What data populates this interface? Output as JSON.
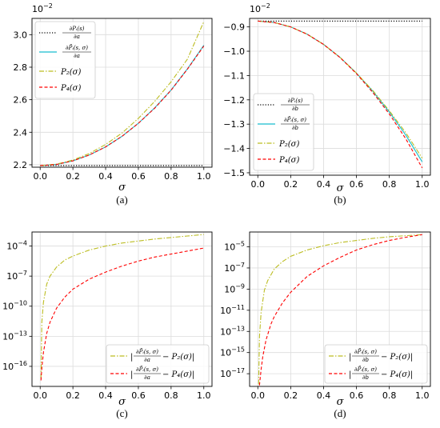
{
  "chart_data": [
    {
      "panel": "a",
      "caption": "(a)",
      "type": "line",
      "xlabel": "σ",
      "ylabel": "",
      "offset_text": "10^-2",
      "xlim": [
        0,
        1
      ],
      "ylim": [
        2.185,
        3.1
      ],
      "yscale": "linear",
      "xticks": [
        "0.0",
        "0.2",
        "0.4",
        "0.6",
        "0.8",
        "1.0"
      ],
      "yticks": [
        "2.2",
        "2.4",
        "2.6",
        "2.8",
        "3.0"
      ],
      "grid": true,
      "legend_position": "upper-left",
      "series": [
        {
          "name": "∂Pᵢ(s)/∂a",
          "style": "dotted",
          "color": "#000000",
          "x": [
            0,
            1
          ],
          "y": [
            2.195,
            2.195
          ]
        },
        {
          "name": "∂P̃ᵢ(s,σ)/∂a",
          "style": "solid",
          "color": "#17becf",
          "x": [
            0,
            0.1,
            0.2,
            0.3,
            0.4,
            0.5,
            0.6,
            0.7,
            0.8,
            0.9,
            1.0
          ],
          "y": [
            2.195,
            2.202,
            2.224,
            2.26,
            2.31,
            2.375,
            2.455,
            2.55,
            2.66,
            2.79,
            2.935
          ]
        },
        {
          "name": "P₂(σ)",
          "style": "dashdot",
          "color": "#bcbd22",
          "x": [
            0,
            0.1,
            0.2,
            0.3,
            0.4,
            0.5,
            0.6,
            0.7,
            0.8,
            0.9,
            1.0
          ],
          "y": [
            2.195,
            2.204,
            2.229,
            2.269,
            2.325,
            2.395,
            2.485,
            2.59,
            2.71,
            2.85,
            3.08
          ]
        },
        {
          "name": "P₄(σ)",
          "style": "dashed",
          "color": "#ff0000",
          "x": [
            0,
            0.1,
            0.2,
            0.3,
            0.4,
            0.5,
            0.6,
            0.7,
            0.8,
            0.9,
            1.0
          ],
          "y": [
            2.195,
            2.202,
            2.224,
            2.26,
            2.31,
            2.375,
            2.455,
            2.548,
            2.658,
            2.788,
            2.93
          ]
        }
      ]
    },
    {
      "panel": "b",
      "caption": "(b)",
      "type": "line",
      "xlabel": "σ",
      "ylabel": "",
      "offset_text": "10^-2",
      "xlim": [
        0,
        1
      ],
      "ylim": [
        -1.51,
        -0.865
      ],
      "yscale": "linear",
      "xticks": [
        "0.0",
        "0.2",
        "0.4",
        "0.6",
        "0.8",
        "1.0"
      ],
      "yticks": [
        "-0.9",
        "-1.0",
        "-1.1",
        "-1.2",
        "-1.3",
        "-1.4",
        "-1.5"
      ],
      "grid": true,
      "legend_position": "lower-left",
      "series": [
        {
          "name": "∂Pᵢ(s)/∂b",
          "style": "dotted",
          "color": "#000000",
          "x": [
            0,
            1
          ],
          "y": [
            -0.876,
            -0.876
          ]
        },
        {
          "name": "∂P̃ᵢ(s,σ)/∂b",
          "style": "solid",
          "color": "#17becf",
          "x": [
            0,
            0.1,
            0.2,
            0.3,
            0.4,
            0.5,
            0.6,
            0.7,
            0.8,
            0.9,
            1.0
          ],
          "y": [
            -0.876,
            -0.882,
            -0.9,
            -0.93,
            -0.972,
            -1.025,
            -1.09,
            -1.165,
            -1.25,
            -1.345,
            -1.455
          ]
        },
        {
          "name": "P₂(σ)",
          "style": "dashdot",
          "color": "#bcbd22",
          "x": [
            0,
            0.1,
            0.2,
            0.3,
            0.4,
            0.5,
            0.6,
            0.7,
            0.8,
            0.9,
            1.0
          ],
          "y": [
            -0.876,
            -0.882,
            -0.9,
            -0.93,
            -0.972,
            -1.025,
            -1.09,
            -1.162,
            -1.245,
            -1.335,
            -1.44
          ]
        },
        {
          "name": "P₄(σ)",
          "style": "dashed",
          "color": "#ff0000",
          "x": [
            0,
            0.1,
            0.2,
            0.3,
            0.4,
            0.5,
            0.6,
            0.7,
            0.8,
            0.9,
            1.0
          ],
          "y": [
            -0.876,
            -0.882,
            -0.9,
            -0.93,
            -0.972,
            -1.026,
            -1.092,
            -1.17,
            -1.258,
            -1.36,
            -1.48
          ]
        }
      ]
    },
    {
      "panel": "c",
      "caption": "(c)",
      "type": "line",
      "xlabel": "σ",
      "ylabel": "",
      "xlim": [
        0,
        1
      ],
      "ylim": [
        -18,
        -2.6
      ],
      "yscale": "log",
      "xticks": [
        "0.0",
        "0.2",
        "0.4",
        "0.6",
        "0.8",
        "1.0"
      ],
      "yticks": [
        "10^-4",
        "10^-7",
        "10^-10",
        "10^-13",
        "10^-16"
      ],
      "ytick_exponents": [
        -4,
        -7,
        -10,
        -13,
        -16
      ],
      "grid": true,
      "legend_position": "lower-right",
      "series": [
        {
          "name": "|∂P̃ᵢ(s,σ)/∂a − P₂(σ)|",
          "style": "dashdot",
          "color": "#bcbd22",
          "x": [
            0.005,
            0.01,
            0.02,
            0.04,
            0.06,
            0.1,
            0.15,
            0.2,
            0.3,
            0.4,
            0.5,
            0.6,
            0.7,
            0.8,
            0.9,
            1.0
          ],
          "log10_y": [
            -17.2,
            -11.6,
            -9.6,
            -7.8,
            -7.0,
            -6.1,
            -5.4,
            -5.0,
            -4.4,
            -4.0,
            -3.7,
            -3.5,
            -3.3,
            -3.15,
            -3.0,
            -2.85
          ]
        },
        {
          "name": "|∂P̃ᵢ(s,σ)/∂a − P₄(σ)|",
          "style": "dashed",
          "color": "#ff0000",
          "x": [
            0.005,
            0.01,
            0.02,
            0.04,
            0.06,
            0.1,
            0.15,
            0.2,
            0.3,
            0.4,
            0.5,
            0.6,
            0.7,
            0.8,
            0.9,
            1.0
          ],
          "log10_y": [
            -17.4,
            -16.2,
            -14.6,
            -12.7,
            -11.6,
            -10.2,
            -9.1,
            -8.3,
            -7.3,
            -6.6,
            -6.0,
            -5.5,
            -5.1,
            -4.8,
            -4.5,
            -4.2
          ]
        }
      ]
    },
    {
      "panel": "d",
      "caption": "(d)",
      "type": "line",
      "xlabel": "σ",
      "ylabel": "",
      "xlim": [
        0,
        1
      ],
      "ylim": [
        -18.2,
        -3.6
      ],
      "yscale": "log",
      "xticks": [
        "0.0",
        "0.2",
        "0.4",
        "0.6",
        "0.8",
        "1.0"
      ],
      "yticks": [
        "10^-5",
        "10^-7",
        "10^-9",
        "10^-11",
        "10^-13",
        "10^-15",
        "10^-17"
      ],
      "ytick_exponents": [
        -5,
        -7,
        -9,
        -11,
        -13,
        -15,
        -17
      ],
      "grid": true,
      "legend_position": "lower-right",
      "series": [
        {
          "name": "|∂P̃ᵢ(s,σ)/∂b − P₂(σ)|",
          "style": "dashdot",
          "color": "#bcbd22",
          "x": [
            0.005,
            0.01,
            0.02,
            0.04,
            0.06,
            0.1,
            0.15,
            0.2,
            0.3,
            0.4,
            0.5,
            0.6,
            0.7,
            0.8,
            0.9,
            1.0
          ],
          "log10_y": [
            -18.0,
            -13.5,
            -11.2,
            -9.1,
            -8.2,
            -7.1,
            -6.4,
            -5.9,
            -5.3,
            -4.9,
            -4.6,
            -4.4,
            -4.2,
            -4.05,
            -3.95,
            -3.85
          ]
        },
        {
          "name": "|∂P̃ᵢ(s,σ)/∂b − P₄(σ)|",
          "style": "dashed",
          "color": "#ff0000",
          "x": [
            0.01,
            0.02,
            0.03,
            0.05,
            0.08,
            0.1,
            0.15,
            0.2,
            0.3,
            0.4,
            0.5,
            0.6,
            0.7,
            0.8,
            0.9,
            1.0
          ],
          "log10_y": [
            -18.1,
            -16.6,
            -15.4,
            -13.8,
            -12.3,
            -11.6,
            -10.3,
            -9.3,
            -7.8,
            -6.8,
            -6.0,
            -5.3,
            -4.8,
            -4.4,
            -4.1,
            -3.85
          ]
        }
      ]
    }
  ]
}
